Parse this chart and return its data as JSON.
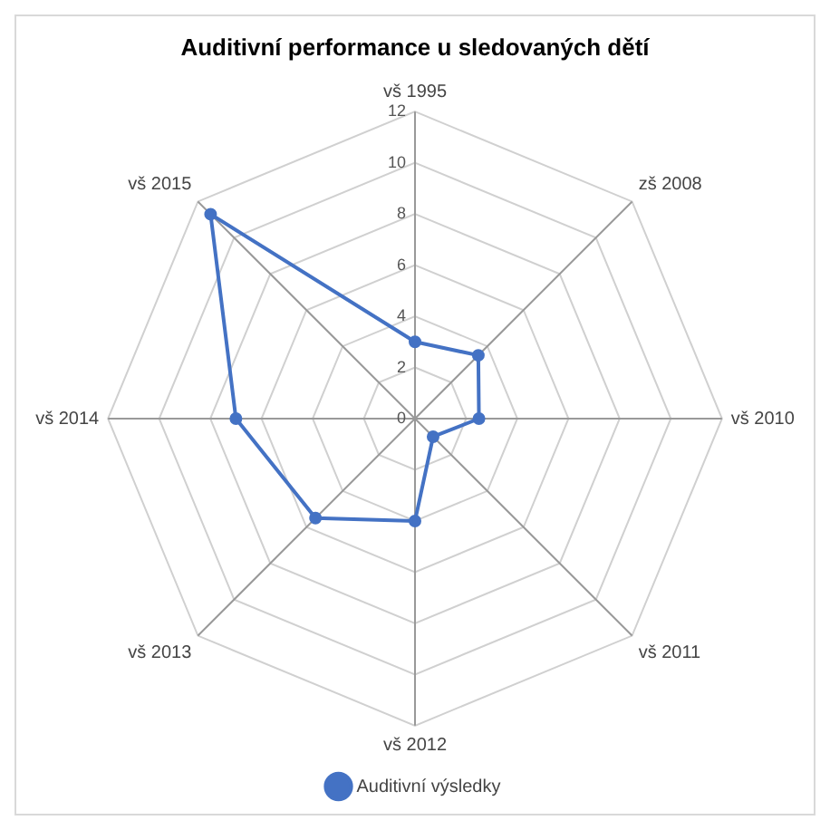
{
  "chart_data": {
    "type": "radar",
    "title": "Auditivní performance u sledovaných dětí",
    "categories": [
      "vš 1995",
      "zš 2008",
      "vš 2010",
      "vš 2011",
      "vš 2012",
      "vš 2013",
      "vš 2014",
      "vš 2015"
    ],
    "series": [
      {
        "name": "Auditivní výsledky",
        "color": "#4472c4",
        "values": [
          3,
          3.5,
          2.5,
          1,
          4,
          5.5,
          7,
          11.3
        ]
      }
    ],
    "ylim": [
      0,
      12
    ],
    "yticks": [
      0,
      2,
      4,
      6,
      8,
      10,
      12
    ],
    "grid": true,
    "legend": "bottom",
    "marker": "circle",
    "line_style": "solid"
  }
}
